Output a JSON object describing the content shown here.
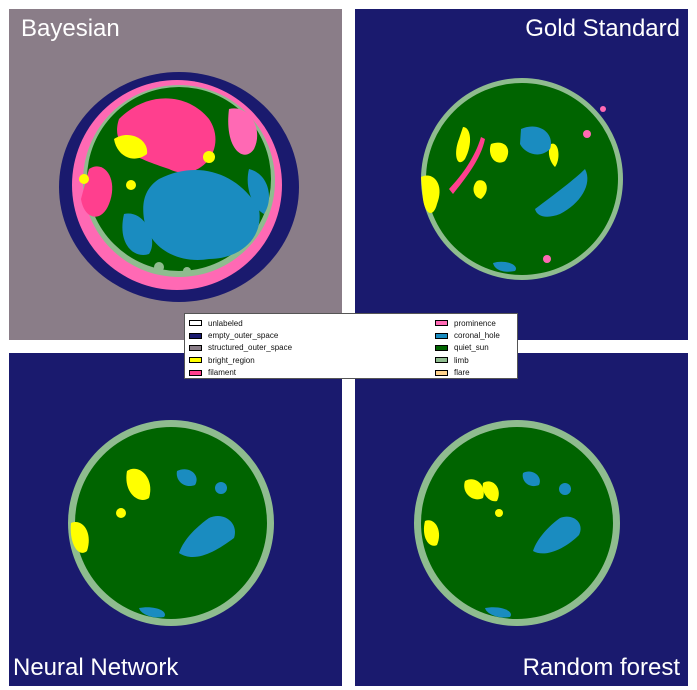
{
  "panels": {
    "bayesian": {
      "title": "Bayesian"
    },
    "gold": {
      "title": "Gold Standard"
    },
    "nn": {
      "title": "Neural Network"
    },
    "rf": {
      "title": "Random forest"
    }
  },
  "legend": {
    "left": [
      {
        "label": "unlabeled",
        "color": "#ffffff"
      },
      {
        "label": "empty_outer_space",
        "color": "#1a1a6e"
      },
      {
        "label": "structured_outer_space",
        "color": "#8a7d88"
      },
      {
        "label": "bright_region",
        "color": "#ffff00"
      },
      {
        "label": "filament",
        "color": "#ff3f8e"
      }
    ],
    "right": [
      {
        "label": "prominence",
        "color": "#ff69b4"
      },
      {
        "label": "coronal_hole",
        "color": "#1a8cc0"
      },
      {
        "label": "quiet_sun",
        "color": "#006400"
      },
      {
        "label": "limb",
        "color": "#8fbc8f"
      },
      {
        "label": "flare",
        "color": "#ffd28c"
      }
    ]
  },
  "colors": {
    "empty_outer_space": "#1a1a6e",
    "structured_outer_space": "#8a7d88",
    "quiet_sun": "#006400",
    "limb": "#8fbc8f",
    "coronal_hole": "#1a8cc0",
    "bright_region": "#ffff00",
    "prominence": "#ff69b4",
    "filament": "#ff3f8e"
  }
}
